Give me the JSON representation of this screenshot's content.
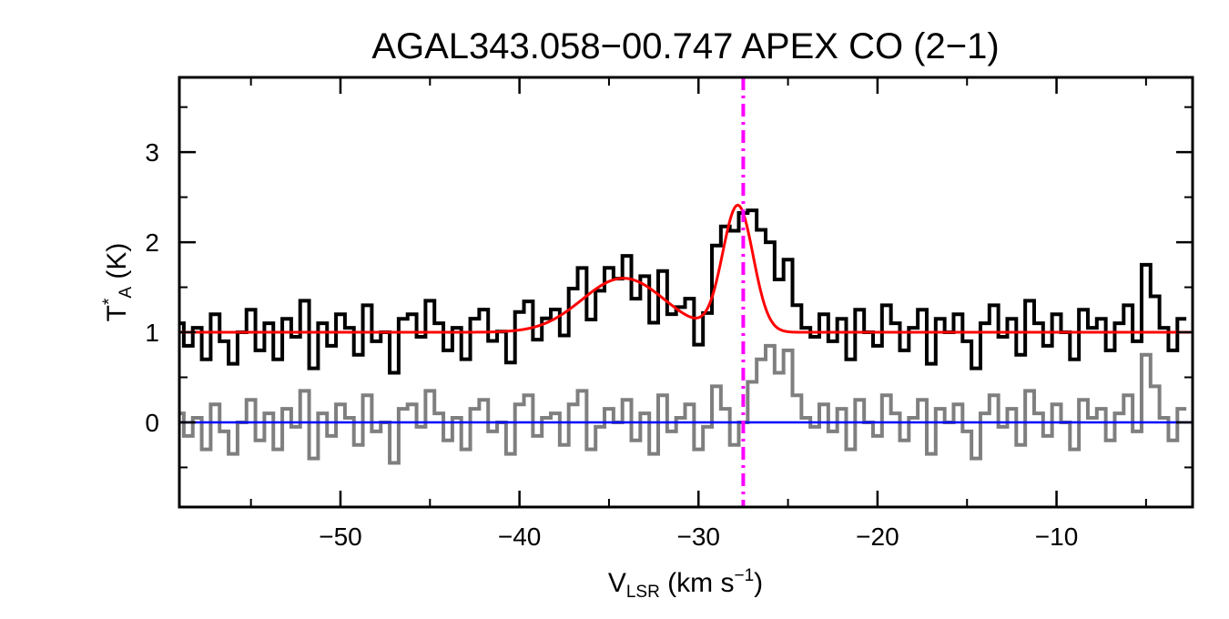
{
  "chart_data": {
    "type": "line",
    "title": "AGAL343.058−00.747  APEX CO (2−1)",
    "xlabel": "V",
    "xlabel_sub": "LSR",
    "xlabel_unit": " (km s",
    "xlabel_sup": "−1",
    "xlabel_end": ")",
    "ylabel": "T",
    "ylabel_sup": "*",
    "ylabel_sub": "A",
    "ylabel_unit": " (K)",
    "xlim": [
      -59.0,
      -2.4
    ],
    "ylim": [
      -0.94,
      3.83
    ],
    "xticks": [
      -50,
      -40,
      -30,
      -20,
      -10
    ],
    "xtick_labels": [
      "−50",
      "−40",
      "−30",
      "−20",
      "−10"
    ],
    "yticks": [
      0,
      1,
      2,
      3
    ],
    "ytick_labels": [
      "0",
      "1",
      "2",
      "3"
    ],
    "channel_start": -59.0,
    "channel_width": 0.5,
    "baseline_offset": 1.0,
    "fit_components": [
      {
        "center": -34.2,
        "amplitude": 0.6,
        "sigma": 2.3
      },
      {
        "center": -27.8,
        "amplitude": 1.4,
        "sigma": 0.85
      }
    ],
    "residuals": [
      0.1,
      -0.15,
      0.05,
      -0.3,
      0.2,
      -0.1,
      -0.35,
      0.0,
      0.25,
      -0.2,
      0.1,
      -0.3,
      0.15,
      -0.05,
      0.35,
      -0.4,
      0.1,
      -0.15,
      0.2,
      0.05,
      -0.25,
      0.3,
      -0.1,
      0.0,
      -0.45,
      0.15,
      0.2,
      -0.05,
      0.35,
      0.1,
      -0.2,
      0.05,
      -0.3,
      0.15,
      0.25,
      -0.1,
      0.0,
      -0.35,
      0.2,
      0.3,
      -0.15,
      0.05,
      0.1,
      -0.25,
      0.2,
      0.35,
      -0.3,
      -0.05,
      0.15,
      0.0,
      0.25,
      -0.2,
      0.1,
      -0.35,
      0.3,
      -0.1,
      0.05,
      0.2,
      -0.3,
      -0.05,
      0.4,
      0.15,
      -0.25,
      0.0,
      0.45,
      0.7,
      0.85,
      0.55,
      0.8,
      0.3,
      0.05,
      -0.05,
      0.2,
      -0.1,
      0.15,
      -0.3,
      0.25,
      0.0,
      -0.15,
      0.3,
      0.1,
      -0.2,
      0.05,
      0.25,
      -0.35,
      0.15,
      0.0,
      0.2,
      -0.1,
      -0.4,
      0.1,
      0.3,
      -0.05,
      0.15,
      -0.25,
      0.35,
      0.1,
      -0.15,
      0.2,
      0.0,
      -0.3,
      0.25,
      0.05,
      0.15,
      -0.2,
      0.1,
      0.3,
      -0.1,
      0.75,
      0.4,
      0.05,
      -0.2,
      0.15
    ],
    "series": [
      {
        "name": "spectrum",
        "color": "#000000",
        "note": "model + residuals"
      },
      {
        "name": "residuals",
        "color": "#7f7f7f"
      },
      {
        "name": "gaussian fit",
        "color": "#ff0000"
      },
      {
        "name": "zero line",
        "color": "#0000ff",
        "y": 0
      }
    ],
    "vline": {
      "x": -27.5,
      "color": "#ff00ff",
      "style": "dash-dot"
    }
  }
}
